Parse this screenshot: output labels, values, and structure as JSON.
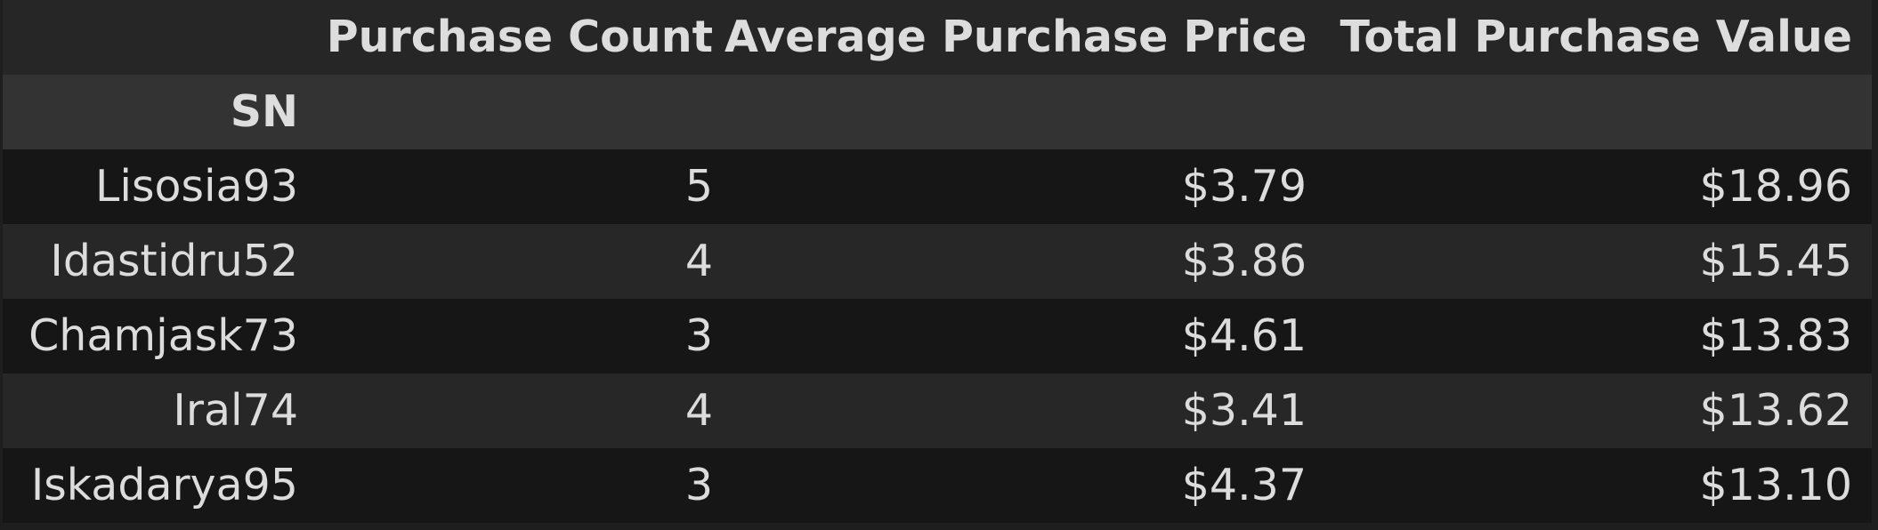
{
  "table": {
    "index_name": "SN",
    "columns": [
      "Purchase Count",
      "Average Purchase Price",
      "Total Purchase Value"
    ],
    "rows": [
      {
        "sn": "Lisosia93",
        "count": "5",
        "avg": "$3.79",
        "total": "$18.96"
      },
      {
        "sn": "Idastidru52",
        "count": "4",
        "avg": "$3.86",
        "total": "$15.45"
      },
      {
        "sn": "Chamjask73",
        "count": "3",
        "avg": "$4.61",
        "total": "$13.83"
      },
      {
        "sn": "Iral74",
        "count": "4",
        "avg": "$3.41",
        "total": "$13.62"
      },
      {
        "sn": "Iskadarya95",
        "count": "3",
        "avg": "$4.37",
        "total": "$13.10"
      }
    ]
  },
  "colors": {
    "background": "#1e1e1e",
    "header_row": "#262626",
    "index_name_row": "#333333",
    "row_dark": "#161616",
    "row_light": "#272727",
    "text": "#dcdcdc"
  }
}
